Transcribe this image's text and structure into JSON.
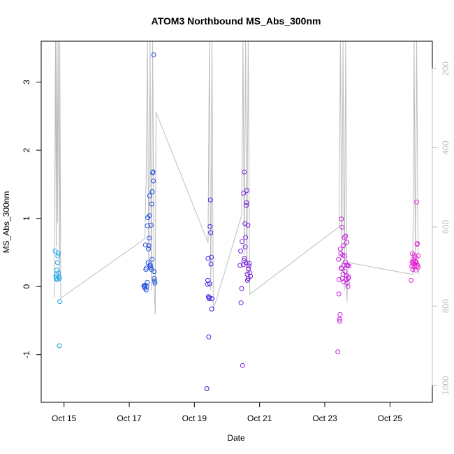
{
  "chart_data": {
    "type": "scatter",
    "title": "ATOM3 Northbound MS_Abs_300nm",
    "xlabel": "Date",
    "ylabel": "MS_Abs_300nm",
    "x_ticks": [
      "Oct 15",
      "Oct 17",
      "Oct 19",
      "Oct 21",
      "Oct 23",
      "Oct 25"
    ],
    "x_tick_days": [
      15,
      17,
      19,
      21,
      23,
      25
    ],
    "xlim_days": [
      14.3,
      26.3
    ],
    "y_ticks": [
      -1,
      0,
      1,
      2,
      3
    ],
    "ylim": [
      -1.7,
      3.6
    ],
    "right_axis_ticks": [
      200,
      400,
      600,
      800,
      1000
    ],
    "right_axis_lim": [
      1043,
      131
    ],
    "grid": false,
    "marker": "open-circle",
    "color_scale": [
      "#1aa3e8",
      "#1f4fe0",
      "#3a1fe0",
      "#7a1fe0",
      "#c81fe0",
      "#e61fd2"
    ],
    "series": [
      {
        "flight": 1,
        "color": "#1aa3e8",
        "x": [
          14.73,
          14.75,
          14.76,
          14.77,
          14.78,
          14.79,
          14.8,
          14.81,
          14.82,
          14.83,
          14.84,
          14.86,
          14.87,
          14.86
        ],
        "y": [
          0.52,
          0.15,
          0.12,
          0.18,
          0.24,
          0.1,
          0.35,
          0.45,
          0.49,
          0.2,
          0.14,
          0.12,
          -0.22,
          -0.87
        ]
      },
      {
        "flight": 2,
        "color": "#1f4fe0",
        "x": [
          17.45,
          17.47,
          17.48,
          17.49,
          17.5,
          17.51,
          17.52,
          17.53,
          17.54,
          17.55,
          17.56,
          17.57,
          17.58,
          17.59,
          17.6,
          17.61,
          17.62,
          17.63,
          17.64,
          17.65,
          17.66,
          17.67,
          17.68,
          17.69,
          17.7,
          17.71,
          17.72,
          17.73,
          17.74,
          17.75,
          17.76,
          17.77,
          17.78,
          17.79
        ],
        "y": [
          0.01,
          0.0,
          -0.02,
          0.02,
          0.61,
          0.25,
          -0.05,
          0.27,
          0.0,
          0.06,
          0.89,
          1.01,
          0.35,
          0.55,
          0.6,
          0.71,
          1.04,
          1.33,
          0.3,
          0.32,
          0.28,
          0.9,
          0.25,
          1.21,
          0.4,
          1.39,
          1.67,
          1.68,
          1.55,
          3.4,
          0.22,
          0.12,
          0.08,
          0.05
        ]
      },
      {
        "flight": 3,
        "color": "#3a1fe0",
        "x": [
          19.38,
          19.4,
          19.41,
          19.42,
          19.43,
          19.44,
          19.45,
          19.46,
          19.47,
          19.48,
          19.49,
          19.5,
          19.51,
          19.52,
          19.53,
          19.54
        ],
        "y": [
          -1.5,
          0.03,
          0.09,
          0.41,
          -0.15,
          -0.74,
          -0.18,
          -0.16,
          0.04,
          0.88,
          1.27,
          0.79,
          0.33,
          0.43,
          -0.33,
          -0.18
        ]
      },
      {
        "flight": 4,
        "color": "#7a1fe0",
        "x": [
          20.4,
          20.42,
          20.43,
          20.45,
          20.46,
          20.48,
          20.5,
          20.51,
          20.52,
          20.53,
          20.54,
          20.55,
          20.56,
          20.57,
          20.58,
          20.59,
          20.6,
          20.61,
          20.62,
          20.63,
          20.64,
          20.65,
          20.66,
          20.67,
          20.68,
          20.7,
          20.72
        ],
        "y": [
          0.31,
          0.52,
          -0.24,
          -0.03,
          0.66,
          -1.16,
          0.32,
          1.37,
          0.38,
          1.68,
          0.41,
          0.92,
          0.58,
          0.72,
          0.35,
          1.19,
          1.23,
          1.41,
          0.18,
          0.09,
          0.9,
          0.12,
          0.26,
          0.3,
          0.34,
          0.2,
          0.15
        ]
      },
      {
        "flight": 5,
        "color": "#c81fe0",
        "x": [
          23.4,
          23.42,
          23.43,
          23.44,
          23.45,
          23.46,
          23.47,
          23.48,
          23.49,
          23.5,
          23.51,
          23.52,
          23.53,
          23.54,
          23.55,
          23.56,
          23.57,
          23.58,
          23.59,
          23.6,
          23.61,
          23.62,
          23.63,
          23.64,
          23.65,
          23.66,
          23.67,
          23.68,
          23.69,
          23.7,
          23.71,
          23.72,
          23.73,
          23.74
        ],
        "y": [
          -0.96,
          0.4,
          -0.11,
          0.1,
          -0.48,
          -0.51,
          -0.41,
          0.55,
          0.48,
          0.27,
          0.99,
          0.26,
          0.87,
          0.12,
          0.46,
          0.18,
          0.6,
          0.07,
          0.31,
          0.72,
          0.45,
          0.22,
          0.36,
          0.74,
          0.1,
          0.31,
          0.16,
          0.65,
          0.05,
          0.31,
          0.0,
          0.12,
          0.14,
          0.3
        ]
      },
      {
        "flight": 6,
        "color": "#e61fd2",
        "x": [
          25.65,
          25.67,
          25.68,
          25.69,
          25.7,
          25.71,
          25.72,
          25.73,
          25.74,
          25.75,
          25.76,
          25.77,
          25.78,
          25.79,
          25.8,
          25.81,
          25.82,
          25.83,
          25.84,
          25.85,
          25.86,
          25.87
        ],
        "y": [
          0.09,
          0.3,
          0.36,
          0.48,
          0.25,
          0.34,
          0.4,
          0.37,
          0.29,
          0.46,
          0.33,
          0.43,
          0.37,
          0.24,
          0.35,
          0.3,
          1.24,
          0.62,
          0.63,
          0.31,
          0.28,
          0.45
        ]
      }
    ],
    "secondary_trace": {
      "axis": "right",
      "color": "#bdbdbd",
      "x": [
        14.7,
        14.74,
        14.76,
        14.78,
        14.8,
        14.82,
        14.86,
        14.87,
        14.9,
        17.48,
        17.52,
        17.56,
        17.6,
        17.64,
        17.68,
        17.72,
        17.76,
        17.8,
        17.82,
        19.42,
        19.46,
        19.5,
        19.54,
        19.58,
        20.45,
        20.49,
        20.53,
        20.57,
        20.61,
        20.65,
        20.7,
        23.44,
        23.48,
        23.52,
        23.56,
        23.6,
        23.64,
        23.68,
        23.72,
        25.7,
        25.74,
        25.78,
        25.82,
        25.86,
        25.88
      ],
      "y": [
        780,
        131,
        650,
        131,
        590,
        131,
        730,
        131,
        780,
        630,
        480,
        131,
        710,
        131,
        760,
        131,
        740,
        820,
        310,
        640,
        131,
        760,
        131,
        810,
        570,
        131,
        670,
        131,
        740,
        131,
        770,
        600,
        131,
        700,
        131,
        760,
        131,
        790,
        690,
        720,
        131,
        690,
        131,
        650,
        720
      ]
    }
  }
}
